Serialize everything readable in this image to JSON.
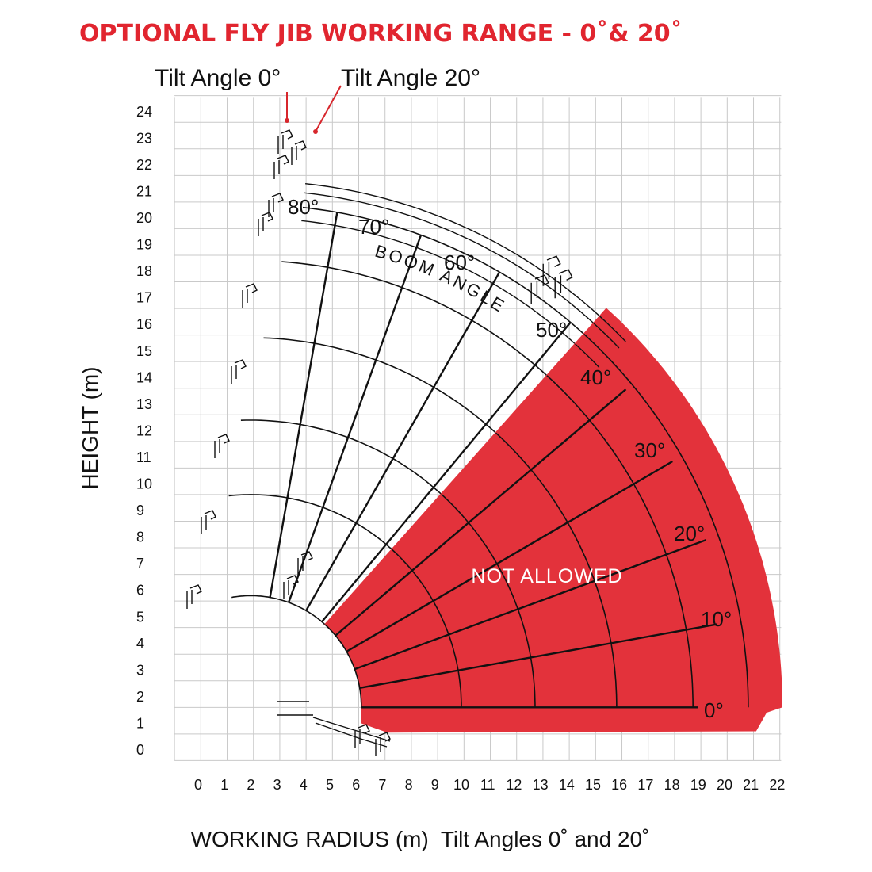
{
  "chart_data": {
    "type": "area",
    "title": "OPTIONAL FLY JIB WORKING RANGE - 0˚& 20˚",
    "xlabel": "WORKING RADIUS (m)  Tilt Angles 0˚ and 20˚",
    "ylabel": "HEIGHT (m)",
    "xlim": [
      0,
      22
    ],
    "ylim": [
      0,
      24
    ],
    "x_ticks": [
      "0",
      "1",
      "2",
      "3",
      "4",
      "5",
      "6",
      "7",
      "8",
      "9",
      "10",
      "11",
      "12",
      "13",
      "14",
      "15",
      "16",
      "17",
      "18",
      "19",
      "20",
      "21",
      "22"
    ],
    "y_ticks": [
      "0",
      "1",
      "2",
      "3",
      "4",
      "5",
      "6",
      "7",
      "8",
      "9",
      "10",
      "11",
      "12",
      "13",
      "14",
      "15",
      "16",
      "17",
      "18",
      "19",
      "20",
      "21",
      "22",
      "23",
      "24"
    ],
    "grid": true,
    "boom_pivot": [
      2,
      1.6
    ],
    "boom_angles_deg": [
      0,
      10,
      20,
      30,
      40,
      50,
      60,
      70,
      80
    ],
    "boom_angle_labels": [
      "0°",
      "10°",
      "20°",
      "30°",
      "40°",
      "50°",
      "60°",
      "70°",
      "80°"
    ],
    "boom_angle_caption": "BOOM ANGLE",
    "boom_lengths_m": [
      4.2,
      8.0,
      10.8,
      13.9,
      16.8,
      18.9
    ],
    "tilt_callouts": [
      "Tilt Angle 0°",
      "Tilt Angle 20°"
    ],
    "region_label": "NOT ALLOWED",
    "not_allowed_region": {
      "from_angle_deg": 0,
      "to_angle_deg": 48,
      "inner_radius_m": 4.2,
      "outer_edge_points": [
        [
          21.6,
          1.4
        ],
        [
          21.2,
          0.7
        ],
        [
          7.2,
          0.65
        ],
        [
          6.2,
          1.0
        ]
      ]
    },
    "colors": {
      "title": "#e1252f",
      "region": "#e3323b",
      "callout_pointer": "#d7262c"
    }
  }
}
